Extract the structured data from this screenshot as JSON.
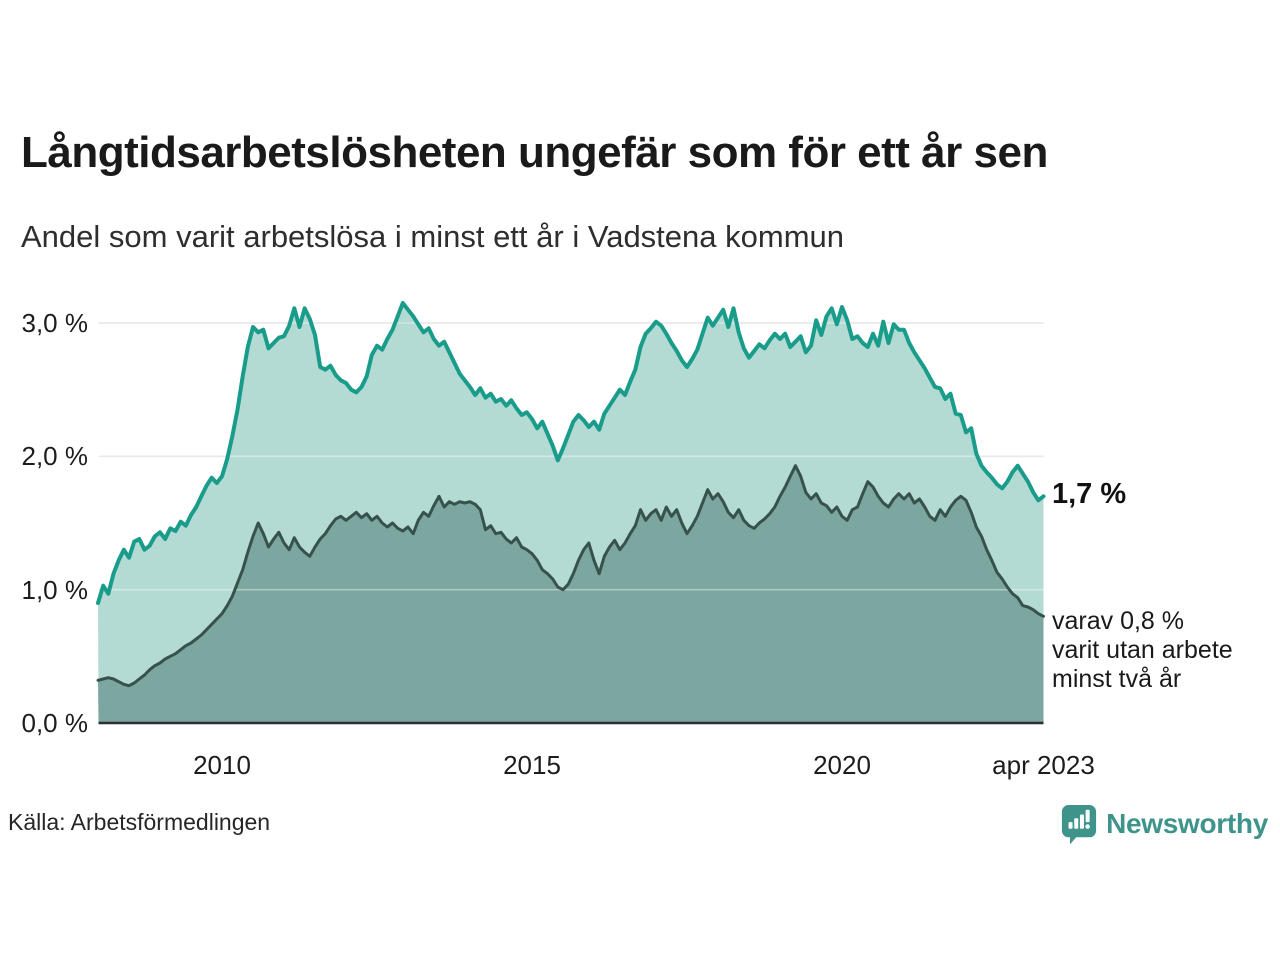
{
  "header": {
    "title": "Långtidsarbetslösheten ungefär som för ett år sen",
    "subtitle": "Andel som varit arbetslösa i minst ett år i Vadstena kommun"
  },
  "annotations": {
    "latest_value": "1,7 %",
    "secondary_lines": [
      "varav 0,8 %",
      "varit utan arbete",
      "minst två år"
    ]
  },
  "footer": {
    "source": "Källa: Arbetsförmedlingen",
    "brand": "Newsworthy"
  },
  "colors": {
    "long_term_line": "#1a9c8b",
    "long_term_fill": "#b4dad4",
    "very_long_term_line": "#37514d",
    "very_long_term_fill": "#7ca7a0",
    "gridline": "#dcdcdc",
    "baseline": "#2e2e2e",
    "brand_teal": "#3e948b",
    "text": "#1a1a1a"
  },
  "chart_data": {
    "type": "area",
    "title": "Långtidsarbetslösheten ungefär som för ett år sen",
    "subtitle": "Andel som varit arbetslösa i minst ett år i Vadstena kommun",
    "x_unit": "time, monthly points (decimal years)",
    "x_start": 2008.0,
    "x_step": 0.08333,
    "x_end": 2023.25,
    "grid": "horizontal",
    "legend": "none (direct labels at line ends)",
    "ylim": [
      0,
      3.35
    ],
    "y_ticks": [
      {
        "value": 3.0,
        "label": "3,0 %"
      },
      {
        "value": 2.0,
        "label": "2,0 %"
      },
      {
        "value": 1.0,
        "label": "1,0 %"
      },
      {
        "value": 0.0,
        "label": "0,0 %"
      }
    ],
    "x_ticks": [
      {
        "value": 2010,
        "label": "2010"
      },
      {
        "value": 2015,
        "label": "2015"
      },
      {
        "value": 2020,
        "label": "2020"
      },
      {
        "value": 2023.25,
        "label": "apr 2023"
      }
    ],
    "series": [
      {
        "name": "Andel arbetslösa minst ett år",
        "end_label": "1,7 %",
        "line_color": "#1a9c8b",
        "fill_color": "#b4dad4",
        "line_width": 4,
        "values": [
          0.9,
          1.03,
          0.97,
          1.12,
          1.22,
          1.3,
          1.24,
          1.36,
          1.38,
          1.3,
          1.33,
          1.4,
          1.43,
          1.38,
          1.46,
          1.44,
          1.51,
          1.48,
          1.56,
          1.62,
          1.7,
          1.78,
          1.84,
          1.8,
          1.85,
          1.98,
          2.15,
          2.35,
          2.6,
          2.82,
          2.97,
          2.93,
          2.95,
          2.81,
          2.85,
          2.89,
          2.9,
          2.98,
          3.11,
          2.97,
          3.11,
          3.03,
          2.91,
          2.67,
          2.65,
          2.68,
          2.61,
          2.57,
          2.55,
          2.5,
          2.48,
          2.52,
          2.6,
          2.76,
          2.83,
          2.8,
          2.88,
          2.95,
          3.05,
          3.15,
          3.1,
          3.05,
          2.99,
          2.93,
          2.96,
          2.88,
          2.83,
          2.86,
          2.78,
          2.7,
          2.62,
          2.57,
          2.52,
          2.46,
          2.51,
          2.44,
          2.47,
          2.41,
          2.43,
          2.38,
          2.42,
          2.36,
          2.31,
          2.33,
          2.28,
          2.21,
          2.26,
          2.17,
          2.08,
          1.97,
          2.06,
          2.16,
          2.26,
          2.31,
          2.27,
          2.22,
          2.26,
          2.2,
          2.32,
          2.38,
          2.44,
          2.5,
          2.46,
          2.56,
          2.65,
          2.82,
          2.92,
          2.96,
          3.01,
          2.98,
          2.92,
          2.85,
          2.79,
          2.72,
          2.67,
          2.73,
          2.8,
          2.92,
          3.04,
          2.98,
          3.04,
          3.1,
          2.97,
          3.11,
          2.93,
          2.81,
          2.74,
          2.79,
          2.84,
          2.81,
          2.87,
          2.92,
          2.88,
          2.92,
          2.82,
          2.86,
          2.9,
          2.78,
          2.83,
          3.02,
          2.91,
          3.05,
          3.11,
          2.99,
          3.12,
          3.02,
          2.88,
          2.9,
          2.85,
          2.82,
          2.92,
          2.83,
          3.01,
          2.85,
          2.99,
          2.95,
          2.95,
          2.85,
          2.78,
          2.72,
          2.66,
          2.59,
          2.52,
          2.51,
          2.43,
          2.47,
          2.32,
          2.31,
          2.18,
          2.21,
          2.02,
          1.93,
          1.88,
          1.84,
          1.79,
          1.76,
          1.81,
          1.88,
          1.93,
          1.87,
          1.81,
          1.73,
          1.67,
          1.7
        ]
      },
      {
        "name": "varav utan arbete minst två år",
        "end_label": "varav 0,8 % varit utan arbete minst två år",
        "line_color": "#37514d",
        "fill_color": "#7ca7a0",
        "line_width": 3,
        "values": [
          0.32,
          0.33,
          0.34,
          0.33,
          0.31,
          0.29,
          0.28,
          0.3,
          0.33,
          0.36,
          0.4,
          0.43,
          0.45,
          0.48,
          0.5,
          0.52,
          0.55,
          0.58,
          0.6,
          0.63,
          0.66,
          0.7,
          0.74,
          0.78,
          0.82,
          0.88,
          0.95,
          1.05,
          1.15,
          1.28,
          1.4,
          1.5,
          1.42,
          1.32,
          1.38,
          1.43,
          1.35,
          1.3,
          1.39,
          1.32,
          1.28,
          1.25,
          1.32,
          1.38,
          1.42,
          1.48,
          1.53,
          1.55,
          1.52,
          1.55,
          1.58,
          1.54,
          1.57,
          1.52,
          1.55,
          1.5,
          1.47,
          1.5,
          1.46,
          1.44,
          1.47,
          1.42,
          1.52,
          1.58,
          1.55,
          1.63,
          1.7,
          1.62,
          1.66,
          1.64,
          1.66,
          1.65,
          1.66,
          1.64,
          1.6,
          1.45,
          1.48,
          1.42,
          1.43,
          1.38,
          1.35,
          1.39,
          1.32,
          1.3,
          1.27,
          1.22,
          1.15,
          1.12,
          1.08,
          1.02,
          1.0,
          1.04,
          1.12,
          1.22,
          1.3,
          1.35,
          1.22,
          1.12,
          1.25,
          1.32,
          1.37,
          1.3,
          1.35,
          1.42,
          1.48,
          1.6,
          1.52,
          1.57,
          1.6,
          1.52,
          1.62,
          1.55,
          1.6,
          1.5,
          1.42,
          1.48,
          1.55,
          1.65,
          1.75,
          1.68,
          1.72,
          1.66,
          1.58,
          1.54,
          1.6,
          1.52,
          1.48,
          1.46,
          1.5,
          1.53,
          1.57,
          1.62,
          1.7,
          1.77,
          1.85,
          1.93,
          1.85,
          1.73,
          1.68,
          1.72,
          1.65,
          1.63,
          1.58,
          1.62,
          1.55,
          1.52,
          1.6,
          1.62,
          1.72,
          1.81,
          1.77,
          1.7,
          1.65,
          1.62,
          1.68,
          1.72,
          1.68,
          1.72,
          1.65,
          1.68,
          1.62,
          1.55,
          1.52,
          1.6,
          1.55,
          1.62,
          1.67,
          1.7,
          1.67,
          1.58,
          1.47,
          1.4,
          1.3,
          1.22,
          1.13,
          1.08,
          1.02,
          0.97,
          0.94,
          0.88,
          0.87,
          0.85,
          0.82,
          0.8
        ]
      }
    ]
  }
}
